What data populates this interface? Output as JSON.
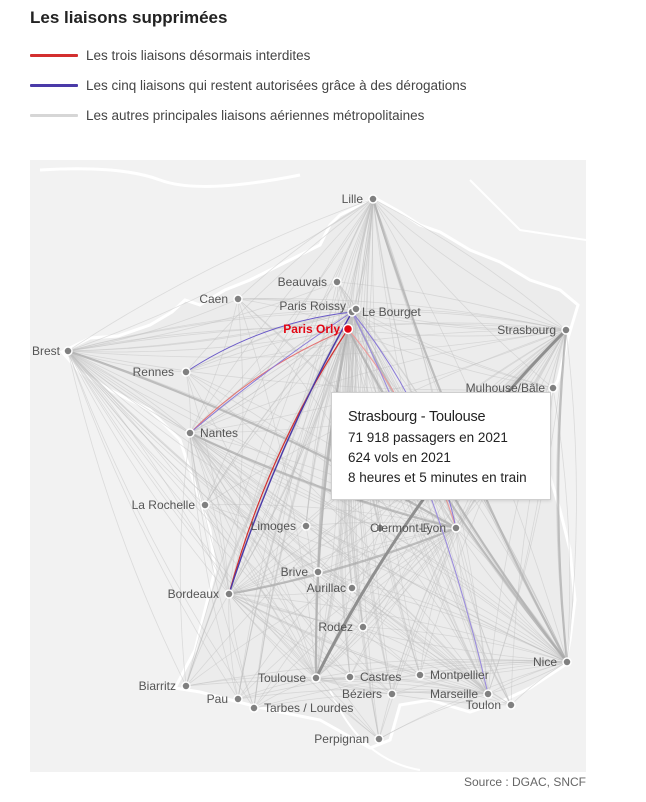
{
  "title": "Les liaisons supprimées",
  "legend": [
    {
      "label": "Les trois liaisons désormais interdites",
      "color": "#d32f2f"
    },
    {
      "label": "Les cinq liaisons qui restent autorisées grâce à des dérogations",
      "color": "#4a3aa8"
    },
    {
      "label": "Les autres principales liaisons aériennes métropolitaines",
      "color": "#d6d6d6"
    }
  ],
  "colors": {
    "land": "#f2f2f2",
    "coast": "#ffffff",
    "city_dot": "#808080",
    "hub": "#e30613",
    "highlight_route": "#999999"
  },
  "cities": {
    "lille": "Lille",
    "beauvais": "Beauvais",
    "caen": "Caen",
    "paris_roissy": "Paris Roissy",
    "le_bourget": "Le Bourget",
    "paris_orly": "Paris Orly",
    "strasbourg": "Strasbourg",
    "brest": "Brest",
    "rennes": "Rennes",
    "mulhouse": "Mulhouse/Bâle",
    "nantes": "Nantes",
    "la_rochelle": "La Rochelle",
    "limoges": "Limoges",
    "clermont": "Clermont-F.",
    "lyon": "Lyon",
    "brive": "Brive",
    "aurillac": "Aurillac",
    "bordeaux": "Bordeaux",
    "rodez": "Rodez",
    "nice": "Nice",
    "biarritz": "Biarritz",
    "toulouse": "Toulouse",
    "castres": "Castres",
    "montpellier": "Montpellier",
    "pau": "Pau",
    "beziers": "Béziers",
    "marseille": "Marseille",
    "tarbes": "Tarbes / Lourdes",
    "toulon": "Toulon",
    "perpignan": "Perpignan"
  },
  "tooltip": {
    "title": "Strasbourg - Toulouse",
    "passengers": "71 918 passagers en 2021",
    "flights": "624 vols en 2021",
    "train": "8 heures et 5 minutes en train"
  },
  "source": "Source : DGAC, SNCF"
}
